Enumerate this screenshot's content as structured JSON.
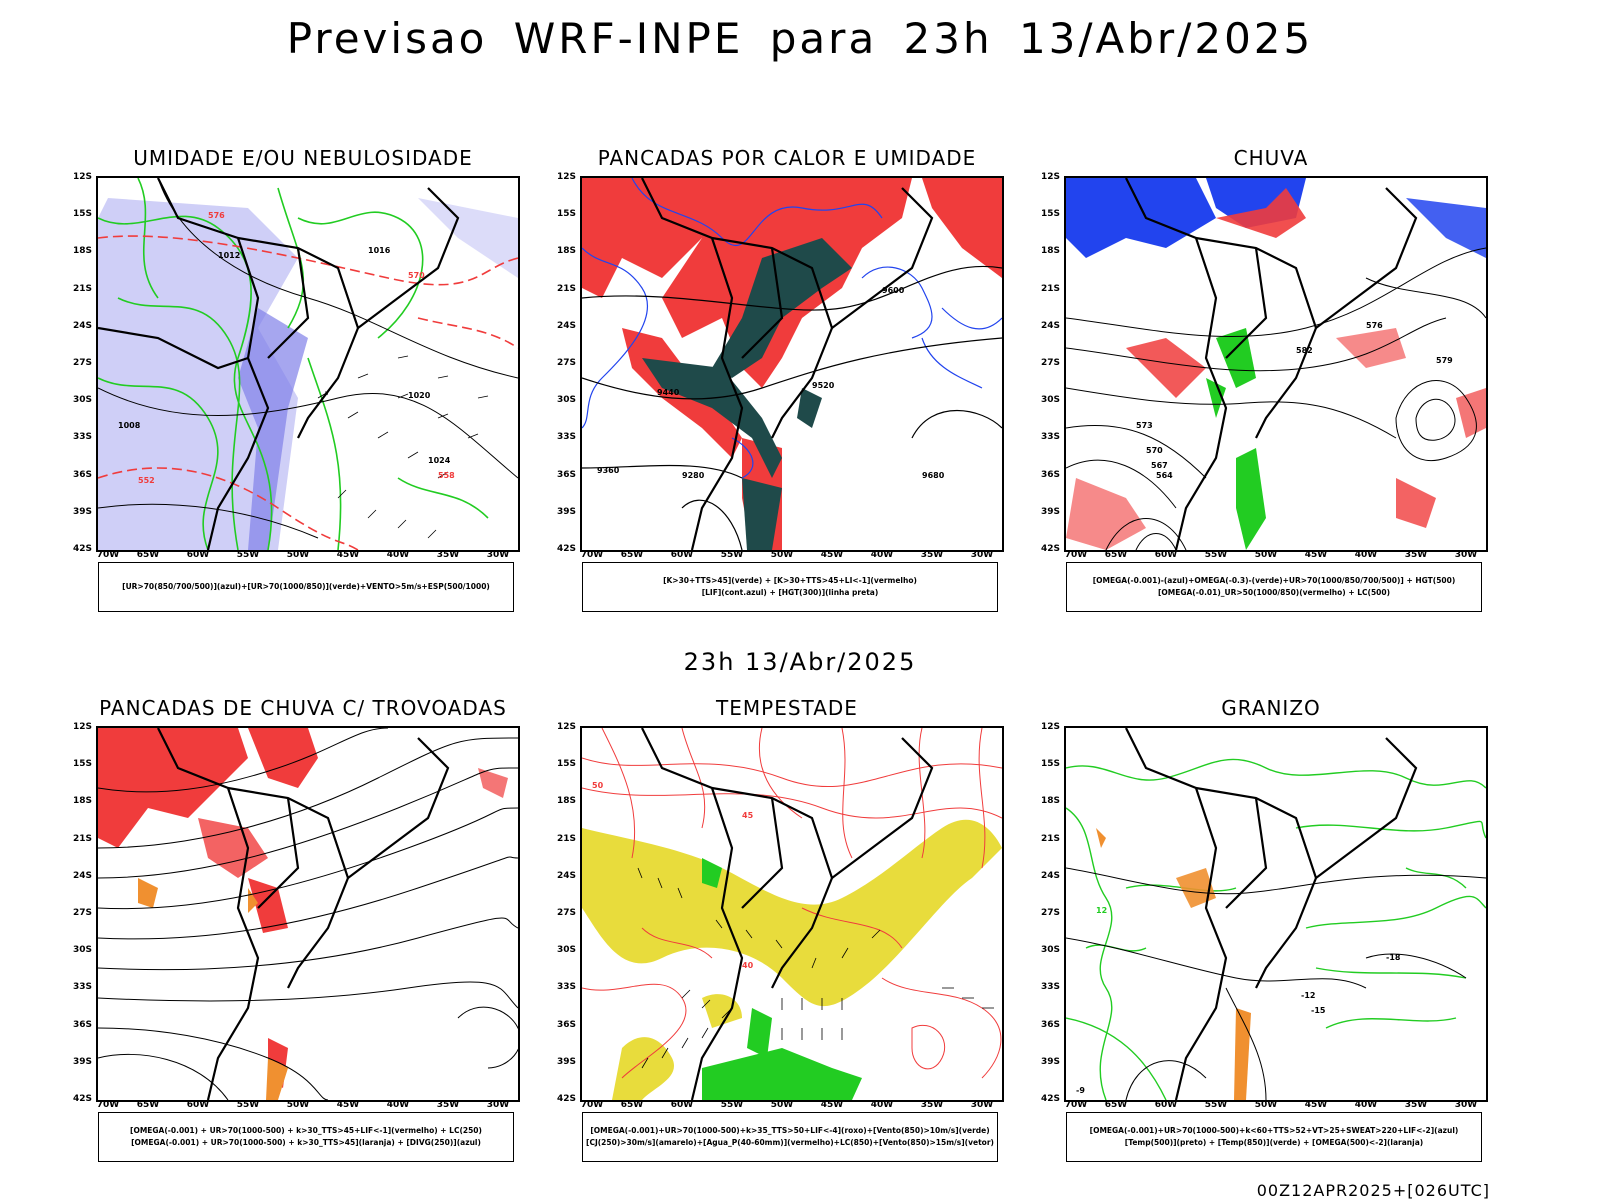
{
  "title": "Previsao WRF-INPE  para 23h 13/Abr/2025",
  "mid_title": "23h 13/Abr/2025",
  "footer": "00Z12APR2025+[026UTC]",
  "lat_labels": [
    "12S",
    "15S",
    "18S",
    "21S",
    "24S",
    "27S",
    "30S",
    "33S",
    "36S",
    "39S",
    "42S"
  ],
  "lon_labels": [
    "70W",
    "65W",
    "60W",
    "55W",
    "50W",
    "45W",
    "40W",
    "35W",
    "30W"
  ],
  "colors": {
    "red": "#f03c3c",
    "green": "#22cc22",
    "blue": "#2244ee",
    "lavender": "#a8a8f0",
    "darkteal": "#1f4a4a",
    "yellow": "#e8dc3c",
    "orange": "#f09030"
  },
  "panels": [
    {
      "title": "UMIDADE E/OU NEBULOSIDADE",
      "legend": [
        "[UR>70(850/700/500)](azul)+[UR>70(1000/850)](verde)+VENTO>5m/s+ESP(500/1000)"
      ],
      "contour_labels": [
        "1012",
        "1016",
        "1020",
        "1024",
        "570",
        "576",
        "558",
        "552",
        "1008"
      ]
    },
    {
      "title": "PANCADAS POR CALOR E UMIDADE",
      "legend": [
        "[K>30+TTS>45](verde) + [K>30+TTS>45+LI<-1](vermelho)",
        "[LIF](cont.azul) + [HGT(300)](linha preta)"
      ],
      "contour_labels": [
        "9600",
        "9520",
        "9440",
        "9360",
        "9280",
        "9680"
      ]
    },
    {
      "title": "CHUVA",
      "legend": [
        "[OMEGA(-0.001)-(azul)+OMEGA(-0.3)-(verde)+UR>70(1000/850/700/500)] + HGT(500)",
        "[OMEGA(-0.01)_UR>50(1000/850)(vermelho) + LC(500)"
      ],
      "contour_labels": [
        "576",
        "573",
        "570",
        "567",
        "564",
        "582",
        "579"
      ]
    },
    {
      "title": "PANCADAS DE CHUVA C/ TROVOADAS",
      "legend": [
        "[OMEGA(-0.001) + UR>70(1000-500) + k>30_TTS>45+LIF<-1](vermelho) + LC(250)",
        "[OMEGA(-0.001) + UR>70(1000-500) + k>30_TTS>45](laranja) + [DIVG(250)](azul)"
      ],
      "contour_labels": []
    },
    {
      "title": "TEMPESTADE",
      "legend": [
        "[OMEGA(-0.001)+UR>70(1000-500)+k>35_TTS>50+LIF<-4](roxo)+[Vento(850)>10m/s](verde)",
        "[CJ(250)>30m/s](amarelo)+[Agua_P(40-60mm)](vermelho)+LC(850)+[Vento(850)>15m/s](vetor)"
      ],
      "contour_labels": [
        "50",
        "45",
        "40"
      ]
    },
    {
      "title": "GRANIZO",
      "legend": [
        "[OMEGA(-0.001)+UR>70(1000-500)+k<60+TTS>52+VT>25+SWEAT>220+LIF<-2](azul)",
        "[Temp(500)](preto) + [Temp(850)](verde) + [OMEGA(500)<-2](laranja)"
      ],
      "contour_labels": [
        "-12",
        "-15",
        "-18",
        "12",
        "-9"
      ]
    }
  ]
}
